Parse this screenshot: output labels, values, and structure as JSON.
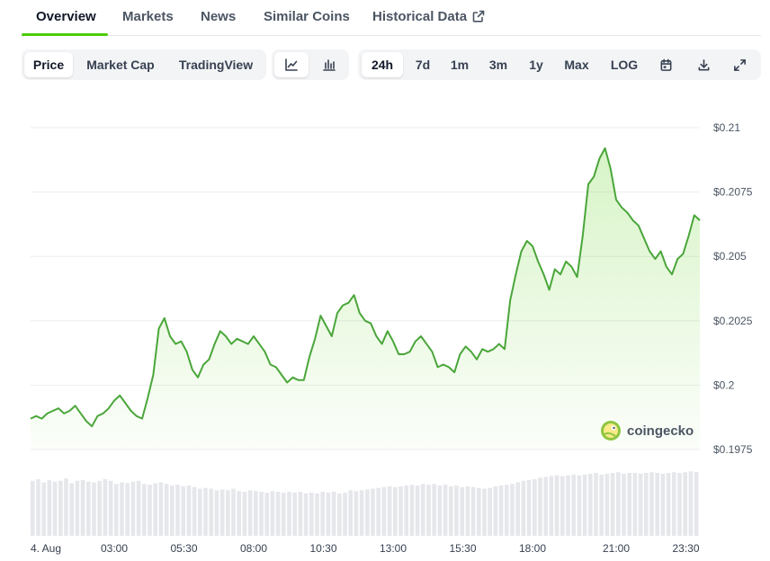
{
  "nav": {
    "tabs": [
      {
        "label": "Overview",
        "active": true
      },
      {
        "label": "Markets"
      },
      {
        "label": "News"
      },
      {
        "label": "Similar Coins"
      },
      {
        "label": "Historical Data",
        "icon": "external-link-icon"
      }
    ]
  },
  "toolbar": {
    "type_tabs": [
      {
        "label": "Price",
        "active": true
      },
      {
        "label": "Market Cap"
      },
      {
        "label": "TradingView"
      }
    ],
    "chart_style_buttons": [
      {
        "icon": "line-chart-icon",
        "active": true
      },
      {
        "icon": "candlestick-icon"
      }
    ],
    "range_tabs": [
      {
        "label": "24h",
        "active": true
      },
      {
        "label": "7d"
      },
      {
        "label": "1m"
      },
      {
        "label": "3m"
      },
      {
        "label": "1y"
      },
      {
        "label": "Max"
      },
      {
        "label": "LOG"
      }
    ],
    "action_icons": [
      "calendar-icon",
      "download-icon",
      "fullscreen-icon"
    ]
  },
  "watermark": "coingecko",
  "colors": {
    "line": "#4aa63a",
    "accent": "#4bcc00",
    "volume": "#e5e7eb",
    "grid": "#eceef1"
  },
  "chart_data": {
    "type": "line",
    "y_tick_labels": [
      "$0.21",
      "$0.2075",
      "$0.205",
      "$0.2025",
      "$0.2",
      "$0.1975"
    ],
    "y_ticks": [
      0.21,
      0.2075,
      0.205,
      0.2025,
      0.2,
      0.1975
    ],
    "ylim": [
      0.1975,
      0.21
    ],
    "x_tick_labels": [
      "4. Aug",
      "03:00",
      "05:30",
      "08:00",
      "10:30",
      "13:00",
      "15:30",
      "18:00",
      "21:00",
      "23:30"
    ],
    "x_ticks": [
      0,
      3,
      5.5,
      8,
      10.5,
      13,
      15.5,
      18,
      21,
      23.5
    ],
    "xlim": [
      0,
      24
    ],
    "grid": true,
    "price": {
      "x": [
        0,
        0.2,
        0.4,
        0.6,
        0.8,
        1.0,
        1.2,
        1.4,
        1.6,
        1.8,
        2.0,
        2.2,
        2.4,
        2.6,
        2.8,
        3.0,
        3.2,
        3.4,
        3.6,
        3.8,
        4.0,
        4.2,
        4.4,
        4.6,
        4.8,
        5.0,
        5.2,
        5.4,
        5.6,
        5.8,
        6.0,
        6.2,
        6.4,
        6.6,
        6.8,
        7.0,
        7.2,
        7.4,
        7.6,
        7.8,
        8.0,
        8.2,
        8.4,
        8.6,
        8.8,
        9.0,
        9.2,
        9.4,
        9.6,
        9.8,
        10.0,
        10.2,
        10.4,
        10.6,
        10.8,
        11.0,
        11.2,
        11.4,
        11.6,
        11.8,
        12.0,
        12.2,
        12.4,
        12.6,
        12.8,
        13.0,
        13.2,
        13.4,
        13.6,
        13.8,
        14.0,
        14.2,
        14.4,
        14.6,
        14.8,
        15.0,
        15.2,
        15.4,
        15.6,
        15.8,
        16.0,
        16.2,
        16.4,
        16.6,
        16.8,
        17.0,
        17.2,
        17.4,
        17.6,
        17.8,
        18.0,
        18.2,
        18.4,
        18.6,
        18.8,
        19.0,
        19.2,
        19.4,
        19.6,
        19.8,
        20.0,
        20.2,
        20.4,
        20.6,
        20.8,
        21.0,
        21.2,
        21.4,
        21.6,
        21.8,
        22.0,
        22.2,
        22.4,
        22.6,
        22.8,
        23.0,
        23.2,
        23.4,
        23.6,
        23.8,
        24.0
      ],
      "y": [
        0.1987,
        0.1988,
        0.1987,
        0.1989,
        0.199,
        0.1991,
        0.1989,
        0.199,
        0.1992,
        0.1989,
        0.1986,
        0.1984,
        0.1988,
        0.1989,
        0.1991,
        0.1994,
        0.1996,
        0.1993,
        0.199,
        0.1988,
        0.1987,
        0.1995,
        0.2004,
        0.2022,
        0.2026,
        0.2019,
        0.2016,
        0.2017,
        0.2013,
        0.2006,
        0.2003,
        0.2008,
        0.201,
        0.2016,
        0.2021,
        0.2019,
        0.2016,
        0.2018,
        0.2017,
        0.2016,
        0.2019,
        0.2016,
        0.2013,
        0.2008,
        0.2007,
        0.2004,
        0.2001,
        0.2003,
        0.2002,
        0.2002,
        0.2011,
        0.2018,
        0.2027,
        0.2023,
        0.2019,
        0.2028,
        0.2031,
        0.2032,
        0.2035,
        0.2028,
        0.2025,
        0.2024,
        0.2019,
        0.2016,
        0.2021,
        0.2017,
        0.2012,
        0.2012,
        0.2013,
        0.2017,
        0.2019,
        0.2016,
        0.2013,
        0.2007,
        0.2008,
        0.2007,
        0.2005,
        0.2012,
        0.2015,
        0.2013,
        0.201,
        0.2014,
        0.2013,
        0.2014,
        0.2016,
        0.2014,
        0.2033,
        0.2043,
        0.2052,
        0.2056,
        0.2054,
        0.2048,
        0.2043,
        0.2037,
        0.2045,
        0.2043,
        0.2048,
        0.2046,
        0.2042,
        0.2058,
        0.2078,
        0.2081,
        0.2088,
        0.2092,
        0.2084,
        0.2072,
        0.2069,
        0.2067,
        0.2064,
        0.2062,
        0.2057,
        0.2052,
        0.2049,
        0.2052,
        0.2046,
        0.2043,
        0.2049,
        0.2051,
        0.2058,
        0.2066,
        0.2064
      ]
    },
    "volume": {
      "x_step": 0.1,
      "relative_heights": [
        0.7,
        0.72,
        0.68,
        0.71,
        0.69,
        0.7,
        0.73,
        0.67,
        0.7,
        0.71,
        0.69,
        0.68,
        0.7,
        0.72,
        0.7,
        0.66,
        0.68,
        0.67,
        0.69,
        0.7,
        0.66,
        0.65,
        0.67,
        0.68,
        0.66,
        0.64,
        0.65,
        0.63,
        0.64,
        0.62,
        0.6,
        0.61,
        0.6,
        0.58,
        0.59,
        0.58,
        0.6,
        0.57,
        0.56,
        0.58,
        0.57,
        0.56,
        0.55,
        0.57,
        0.56,
        0.55,
        0.56,
        0.55,
        0.56,
        0.54,
        0.55,
        0.54,
        0.56,
        0.55,
        0.56,
        0.54,
        0.55,
        0.58,
        0.57,
        0.58,
        0.59,
        0.6,
        0.61,
        0.62,
        0.63,
        0.62,
        0.63,
        0.64,
        0.65,
        0.64,
        0.66,
        0.65,
        0.66,
        0.64,
        0.65,
        0.63,
        0.64,
        0.62,
        0.63,
        0.62,
        0.61,
        0.6,
        0.61,
        0.63,
        0.64,
        0.65,
        0.66,
        0.68,
        0.7,
        0.71,
        0.72,
        0.74,
        0.75,
        0.76,
        0.77,
        0.76,
        0.77,
        0.78,
        0.77,
        0.78,
        0.79,
        0.8,
        0.78,
        0.79,
        0.8,
        0.81,
        0.79,
        0.8,
        0.8,
        0.79,
        0.8,
        0.81,
        0.8,
        0.79,
        0.8,
        0.81,
        0.8,
        0.81,
        0.82,
        0.81
      ]
    }
  }
}
